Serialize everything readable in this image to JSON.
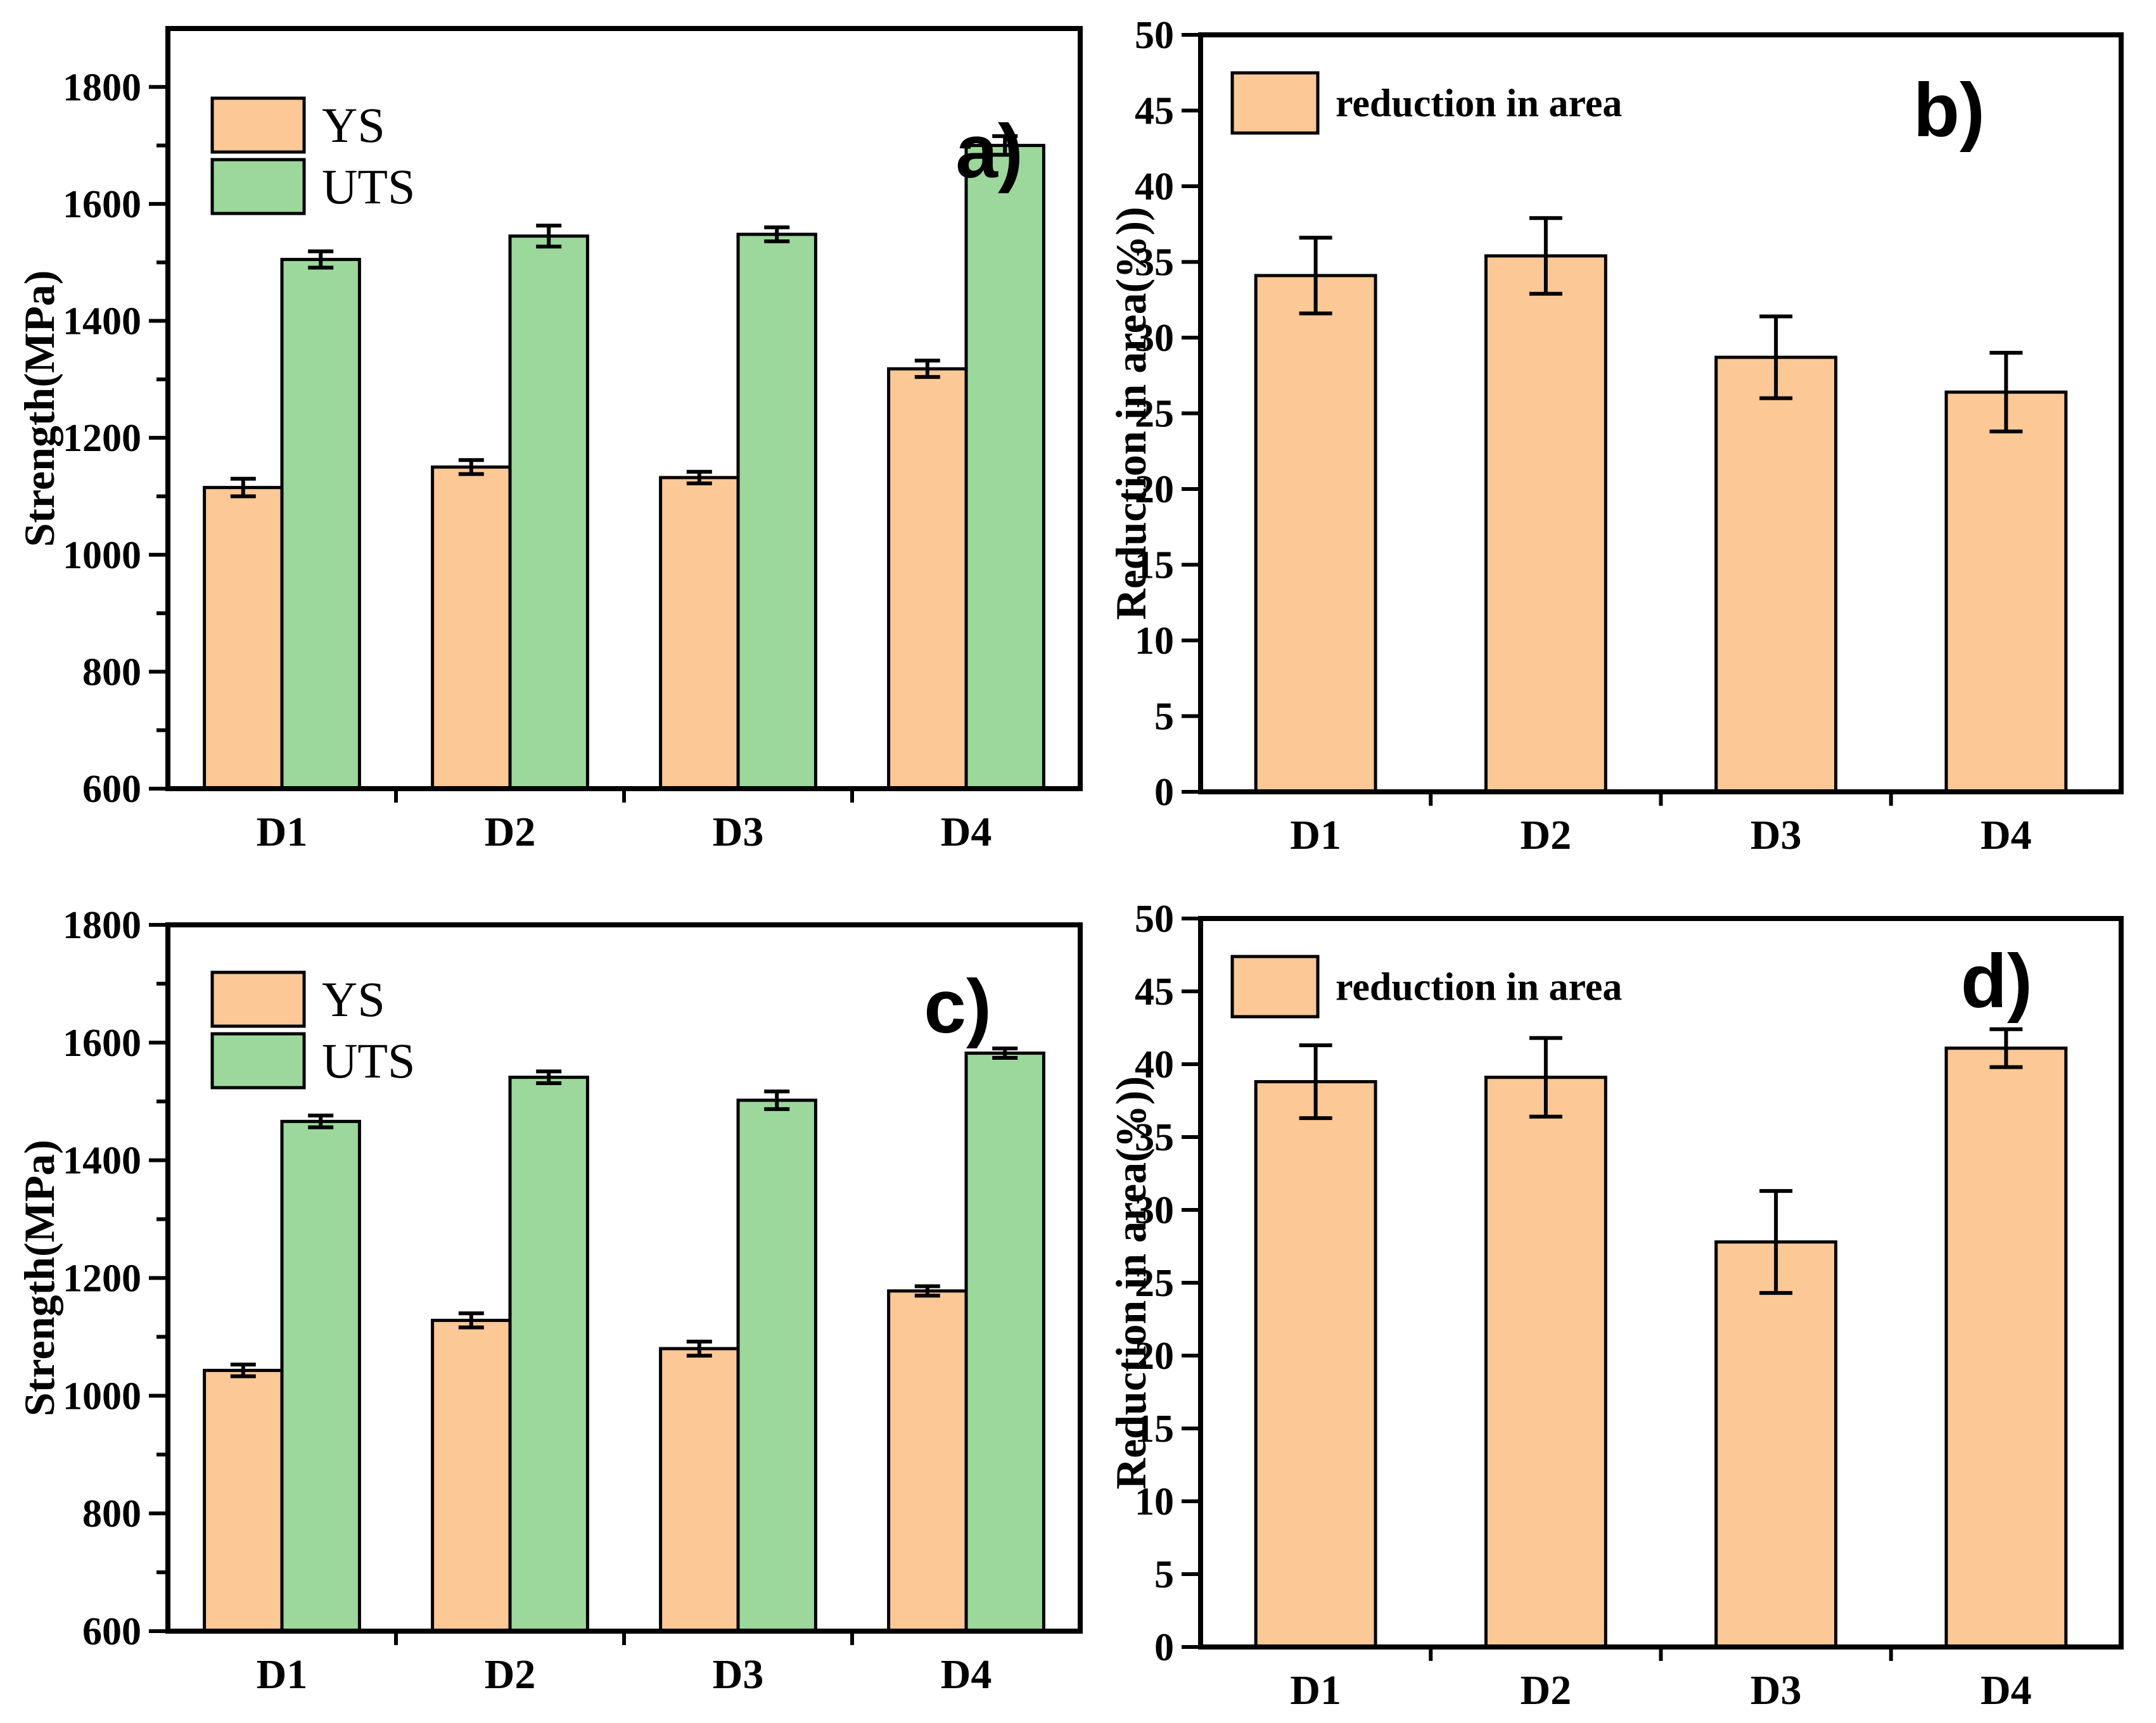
{
  "figure": {
    "background": "#ffffff",
    "axis_color": "#000000",
    "bar_edge_color": "#000000",
    "error_bar_color": "#000000",
    "ys_color": "#FBC896",
    "uts_color": "#9CD89C",
    "reduction_color": "#FBC896"
  },
  "chart_data": [
    {
      "id": "a",
      "type": "bar",
      "panel_label": "a)",
      "title": "",
      "xlabel": "",
      "ylabel": "Strength(MPa)",
      "categories": [
        "D1",
        "D2",
        "D3",
        "D4"
      ],
      "ylim": [
        600,
        1900
      ],
      "yticks": [
        600,
        800,
        1000,
        1200,
        1400,
        1600,
        1800
      ],
      "minor_tick_step": 100,
      "grid": false,
      "legend_position": "top-left",
      "series": [
        {
          "name": "YS",
          "color": "#FBC896",
          "values": [
            1115,
            1150,
            1132,
            1318
          ],
          "errors": [
            15,
            12,
            10,
            14
          ]
        },
        {
          "name": "UTS",
          "color": "#9CD89C",
          "values": [
            1505,
            1545,
            1548,
            1700
          ],
          "errors": [
            14,
            18,
            12,
            16
          ]
        }
      ]
    },
    {
      "id": "b",
      "type": "bar",
      "panel_label": "b)",
      "title": "",
      "xlabel": "",
      "ylabel": "Reduction in area(%))",
      "categories": [
        "D1",
        "D2",
        "D3",
        "D4"
      ],
      "ylim": [
        0,
        50
      ],
      "yticks": [
        0,
        5,
        10,
        15,
        20,
        25,
        30,
        35,
        40,
        45,
        50
      ],
      "minor_tick_step": 0,
      "grid": false,
      "legend_position": "top-left",
      "series": [
        {
          "name": "reduction in area",
          "color": "#FBC896",
          "values": [
            34.1,
            35.4,
            28.7,
            26.4
          ],
          "errors": [
            2.5,
            2.5,
            2.7,
            2.6
          ]
        }
      ]
    },
    {
      "id": "c",
      "type": "bar",
      "panel_label": "c)",
      "title": "",
      "xlabel": "",
      "ylabel": "Strength(MPa)",
      "categories": [
        "D1",
        "D2",
        "D3",
        "D4"
      ],
      "ylim": [
        600,
        1800
      ],
      "yticks": [
        600,
        800,
        1000,
        1200,
        1400,
        1600,
        1800
      ],
      "minor_tick_step": 100,
      "grid": false,
      "legend_position": "top-left",
      "series": [
        {
          "name": "YS",
          "color": "#FBC896",
          "values": [
            1043,
            1128,
            1080,
            1178
          ],
          "errors": [
            10,
            12,
            12,
            8
          ]
        },
        {
          "name": "UTS",
          "color": "#9CD89C",
          "values": [
            1466,
            1541,
            1502,
            1582
          ],
          "errors": [
            10,
            10,
            15,
            8
          ]
        }
      ]
    },
    {
      "id": "d",
      "type": "bar",
      "panel_label": "d)",
      "title": "",
      "xlabel": "",
      "ylabel": "Reduction in area(%))",
      "categories": [
        "D1",
        "D2",
        "D3",
        "D4"
      ],
      "ylim": [
        0,
        50
      ],
      "yticks": [
        0,
        5,
        10,
        15,
        20,
        25,
        30,
        35,
        40,
        45,
        50
      ],
      "minor_tick_step": 0,
      "grid": false,
      "legend_position": "top-left",
      "series": [
        {
          "name": "reduction in area",
          "color": "#FBC896",
          "values": [
            38.8,
            39.1,
            27.8,
            41.1
          ],
          "errors": [
            2.5,
            2.7,
            3.5,
            1.3
          ]
        }
      ]
    }
  ]
}
